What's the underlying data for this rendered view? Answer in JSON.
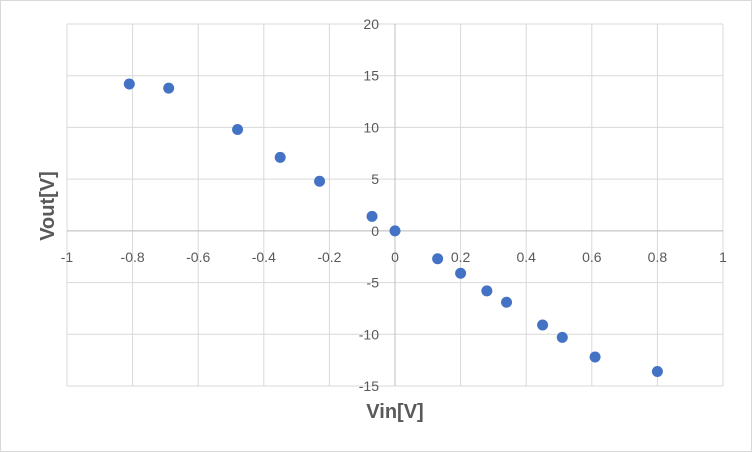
{
  "chart_data": {
    "type": "scatter",
    "title": "",
    "xlabel": "Vin[V]",
    "ylabel": "Vout[V]",
    "xlim": [
      -1,
      1
    ],
    "ylim": [
      -15,
      20
    ],
    "x_ticks": [
      -1,
      -0.8,
      -0.6,
      -0.4,
      -0.2,
      0,
      0.2,
      0.4,
      0.6,
      0.8,
      1
    ],
    "y_ticks": [
      -15,
      -10,
      -5,
      0,
      5,
      10,
      15,
      20
    ],
    "x_tick_labels": [
      "-1",
      "-0.8",
      "-0.6",
      "-0.4",
      "-0.2",
      "0",
      "0.2",
      "0.4",
      "0.6",
      "0.8",
      "1"
    ],
    "y_tick_labels": [
      "-15",
      "-10",
      "-5",
      "0",
      "5",
      "10",
      "15",
      "20"
    ],
    "grid": true,
    "legend": "none",
    "marker_color": "#4472C4",
    "series": [
      {
        "x": [
          -0.81,
          -0.69,
          -0.48,
          -0.35,
          -0.23,
          -0.07,
          0,
          0.13,
          0.2,
          0.28,
          0.34,
          0.45,
          0.51,
          0.61,
          0.8
        ],
        "y": [
          14.2,
          13.8,
          9.8,
          7.1,
          4.8,
          1.4,
          0,
          -2.7,
          -4.1,
          -5.8,
          -6.9,
          -9.1,
          -10.3,
          -12.2,
          -13.6
        ]
      }
    ]
  }
}
